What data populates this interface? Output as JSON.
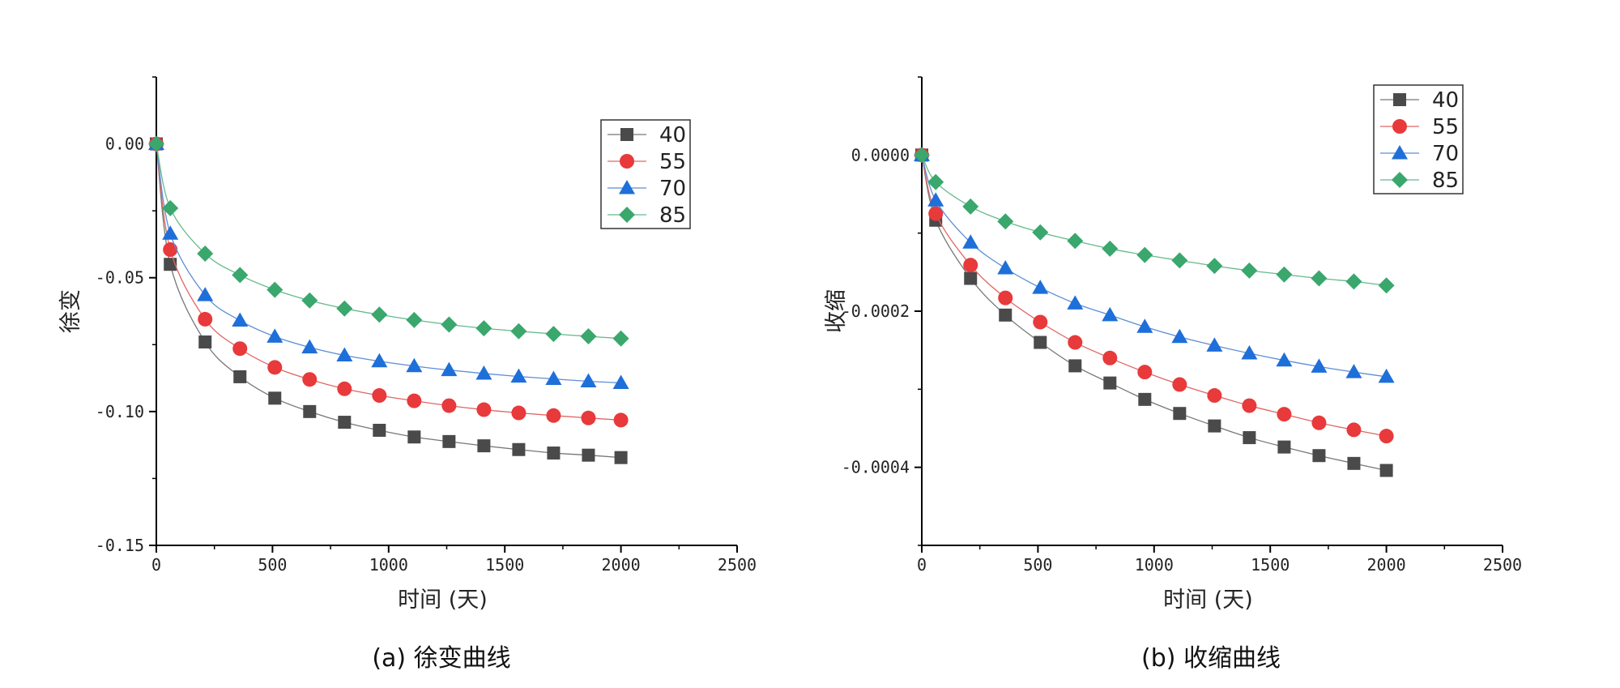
{
  "chart_data": [
    {
      "type": "line",
      "id": "creep",
      "caption": "(a)  徐变曲线",
      "xlabel": "时间  (天)",
      "ylabel": "徐变",
      "xlim": [
        0,
        2500
      ],
      "ylim": [
        -0.15,
        0.025
      ],
      "xticks": [
        0,
        500,
        1000,
        1500,
        2000,
        2500
      ],
      "yticks": [
        0.0,
        -0.05,
        -0.1,
        -0.15
      ],
      "ytick_labels": [
        "0.00",
        "-0.05",
        "-0.10",
        "-0.15"
      ],
      "x": [
        0,
        60,
        210,
        360,
        510,
        660,
        810,
        960,
        1110,
        1260,
        1410,
        1560,
        1710,
        1860,
        2000
      ],
      "legend_position": "top-right",
      "series": [
        {
          "name": "40",
          "marker": "square",
          "color": "#4a4a4a",
          "line_color": "#777777",
          "values": [
            0,
            -0.045,
            -0.074,
            -0.087,
            -0.095,
            -0.1,
            -0.104,
            -0.107,
            -0.1095,
            -0.1112,
            -0.1128,
            -0.1142,
            -0.1155,
            -0.1163,
            -0.1172
          ]
        },
        {
          "name": "55",
          "marker": "circle",
          "color": "#e8393b",
          "line_color": "#e06666",
          "values": [
            0,
            -0.0395,
            -0.0655,
            -0.0765,
            -0.0835,
            -0.088,
            -0.0915,
            -0.094,
            -0.096,
            -0.0978,
            -0.0993,
            -0.1005,
            -0.1015,
            -0.1024,
            -0.1032
          ]
        },
        {
          "name": "70",
          "marker": "triangle",
          "color": "#1e6fd9",
          "line_color": "#5b8ed6",
          "values": [
            0,
            -0.0335,
            -0.0565,
            -0.066,
            -0.072,
            -0.076,
            -0.079,
            -0.0812,
            -0.083,
            -0.0845,
            -0.0858,
            -0.0869,
            -0.0878,
            -0.0887,
            -0.0893
          ]
        },
        {
          "name": "85",
          "marker": "diamond",
          "color": "#3aa76d",
          "line_color": "#66b98c",
          "values": [
            0,
            -0.024,
            -0.041,
            -0.049,
            -0.0545,
            -0.0585,
            -0.0615,
            -0.0638,
            -0.0658,
            -0.0675,
            -0.0689,
            -0.07,
            -0.071,
            -0.0719,
            -0.0727
          ]
        }
      ]
    },
    {
      "type": "line",
      "id": "shrinkage",
      "caption": "(b)  收缩曲线",
      "xlabel": "时间  (天)",
      "ylabel": "收缩",
      "xlim": [
        0,
        2500
      ],
      "ylim": [
        -0.0005,
        0.0001
      ],
      "xticks": [
        0,
        500,
        1000,
        1500,
        2000,
        2500
      ],
      "yticks": [
        0.0,
        -0.0002,
        -0.0004
      ],
      "ytick_labels": [
        "0.0000",
        "-0.0002",
        "-0.0004"
      ],
      "x": [
        0,
        60,
        210,
        360,
        510,
        660,
        810,
        960,
        1110,
        1260,
        1410,
        1560,
        1710,
        1860,
        2000
      ],
      "legend_position": "top-right",
      "series": [
        {
          "name": "40",
          "marker": "square",
          "color": "#4a4a4a",
          "line_color": "#777777",
          "values": [
            0,
            -8.35e-05,
            -0.000158,
            -0.000205,
            -0.00024,
            -0.00027,
            -0.000292,
            -0.000313,
            -0.000331,
            -0.000347,
            -0.000362,
            -0.000374,
            -0.000385,
            -0.000395,
            -0.000404
          ]
        },
        {
          "name": "55",
          "marker": "circle",
          "color": "#e8393b",
          "line_color": "#e06666",
          "values": [
            0,
            -7.5e-05,
            -0.000141,
            -0.000183,
            -0.000214,
            -0.00024,
            -0.00026,
            -0.000278,
            -0.000294,
            -0.000308,
            -0.000321,
            -0.000332,
            -0.000343,
            -0.000352,
            -0.00036
          ]
        },
        {
          "name": "70",
          "marker": "triangle",
          "color": "#1e6fd9",
          "line_color": "#5b8ed6",
          "values": [
            0,
            -5.8e-05,
            -0.000112,
            -0.000145,
            -0.00017,
            -0.00019,
            -0.000205,
            -0.00022,
            -0.000233,
            -0.000244,
            -0.000254,
            -0.000263,
            -0.000271,
            -0.000278,
            -0.000284
          ]
        },
        {
          "name": "85",
          "marker": "diamond",
          "color": "#3aa76d",
          "line_color": "#66b98c",
          "values": [
            0,
            -3.45e-05,
            -6.6e-05,
            -8.5e-05,
            -9.9e-05,
            -0.00011,
            -0.00012,
            -0.000128,
            -0.000135,
            -0.000142,
            -0.000148,
            -0.000153,
            -0.000158,
            -0.000162,
            -0.000167
          ]
        }
      ]
    }
  ]
}
